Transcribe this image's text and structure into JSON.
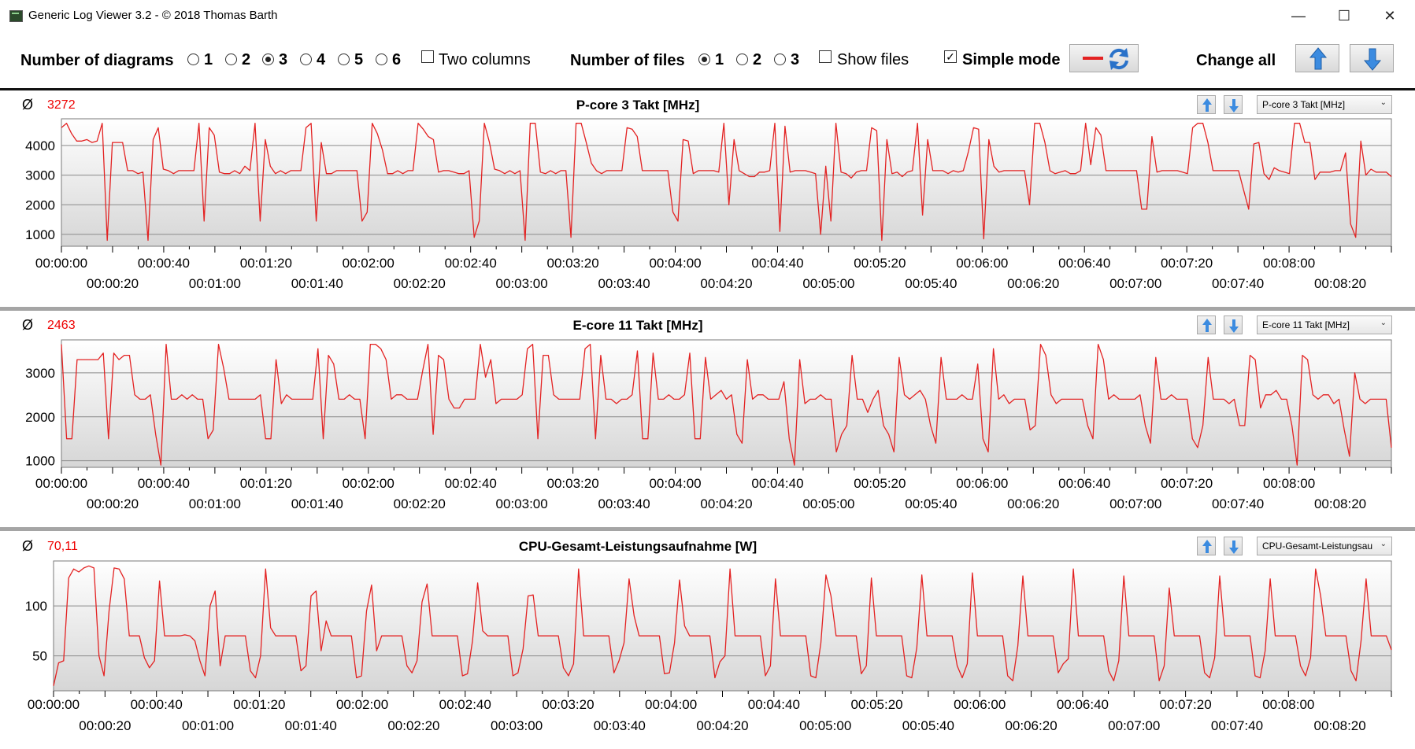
{
  "window": {
    "title": "Generic Log Viewer 3.2 - © 2018 Thomas Barth",
    "minimize_label": "—",
    "maximize_label": "☐",
    "close_label": "✕"
  },
  "toolbar": {
    "diagrams_label": "Number of diagrams",
    "diagram_options": [
      "1",
      "2",
      "3",
      "4",
      "5",
      "6"
    ],
    "diagrams_selected": "3",
    "two_columns_label": "Two columns",
    "two_columns_checked": false,
    "files_label": "Number of files",
    "file_options": [
      "1",
      "2",
      "3"
    ],
    "files_selected": "1",
    "show_files_label": "Show files",
    "show_files_checked": false,
    "simple_mode_label": "Simple mode",
    "simple_mode_checked": true,
    "change_all_label": "Change all",
    "line_color": "#e32222",
    "icons": [
      "red-line-icon",
      "refresh-icon",
      "arrow-up-icon",
      "arrow-down-icon"
    ]
  },
  "panels": [
    {
      "avg_symbol": "Ø",
      "avg": "3272",
      "title": "P-core 3 Takt [MHz]",
      "selector": "P-core 3 Takt [MHz]"
    },
    {
      "avg_symbol": "Ø",
      "avg": "2463",
      "title": "E-core 11 Takt [MHz]",
      "selector": "E-core 11 Takt [MHz]"
    },
    {
      "avg_symbol": "Ø",
      "avg": "70,11",
      "title": "CPU-Gesamt-Leistungsaufnahme [W]",
      "selector": "CPU-Gesamt-Leistungsau"
    }
  ],
  "chart_data": [
    {
      "type": "line",
      "title": "P-core 3 Takt [MHz]",
      "xlabel": "",
      "ylabel": "",
      "x_range_seconds": [
        0,
        520
      ],
      "ylim": [
        600,
        4900
      ],
      "yticks": [
        1000,
        2000,
        3000,
        4000
      ],
      "x_tick_labels_upper": [
        "00:00:00",
        "00:00:40",
        "00:01:20",
        "00:02:00",
        "00:02:40",
        "00:03:20",
        "00:04:00",
        "00:04:40",
        "00:05:20",
        "00:06:00",
        "00:06:40",
        "00:07:20",
        "00:08:00"
      ],
      "x_tick_labels_lower": [
        "00:00:20",
        "00:01:00",
        "00:01:40",
        "00:02:20",
        "00:03:00",
        "00:03:40",
        "00:04:20",
        "00:05:00",
        "00:05:40",
        "00:06:20",
        "00:07:00",
        "00:07:40",
        "00:08:20"
      ],
      "grid": true,
      "color": "#e32222",
      "values": [
        4600,
        4750,
        4400,
        4150,
        4150,
        4200,
        4100,
        4150,
        4750,
        800,
        4100,
        4100,
        4100,
        3150,
        3150,
        3050,
        3100,
        800,
        4200,
        4600,
        3200,
        3150,
        3050,
        3150,
        3150,
        3150,
        3150,
        4750,
        1450,
        4600,
        4350,
        3100,
        3050,
        3050,
        3150,
        3050,
        3300,
        3150,
        4750,
        1450,
        4200,
        3300,
        3050,
        3150,
        3050,
        3150,
        3150,
        3150,
        4600,
        4750,
        1450,
        4100,
        3050,
        3050,
        3150,
        3150,
        3150,
        3150,
        3150,
        1450,
        1750,
        4750,
        4400,
        3850,
        3050,
        3050,
        3150,
        3050,
        3150,
        3150,
        4750,
        4550,
        4300,
        4200,
        3100,
        3150,
        3150,
        3100,
        3050,
        3050,
        3150,
        900,
        1450,
        4750,
        4100,
        3200,
        3150,
        3050,
        3150,
        3050,
        3150,
        800,
        4750,
        4750,
        3100,
        3050,
        3150,
        3050,
        3150,
        3150,
        900,
        4750,
        4750,
        4100,
        3400,
        3150,
        3050,
        3150,
        3150,
        3150,
        3150,
        4600,
        4550,
        4300,
        3150,
        3150,
        3150,
        3150,
        3150,
        3150,
        1750,
        1450,
        4200,
        4150,
        3050,
        3150,
        3150,
        3150,
        3150,
        3100,
        4750,
        2000,
        4200,
        3150,
        3050,
        2950,
        2950,
        3100,
        3100,
        3150,
        4750,
        1100,
        4650,
        3100,
        3150,
        3150,
        3150,
        3100,
        3050,
        1000,
        3300,
        1450,
        4750,
        3100,
        3050,
        2900,
        3100,
        3150,
        3150,
        4600,
        4500,
        800,
        4200,
        3050,
        3100,
        2950,
        3100,
        3150,
        4750,
        1650,
        4200,
        3150,
        3150,
        3150,
        3050,
        3150,
        3100,
        3150,
        3800,
        4600,
        4550,
        850,
        4200,
        3300,
        3100,
        3150,
        3150,
        3150,
        3150,
        3150,
        2000,
        4750,
        4750,
        4100,
        3150,
        3050,
        3100,
        3150,
        3050,
        3050,
        3150,
        4750,
        3350,
        4600,
        4350,
        3150,
        3150,
        3150,
        3150,
        3150,
        3150,
        3150,
        1850,
        1850,
        4300,
        3100,
        3150,
        3150,
        3150,
        3150,
        3100,
        3050,
        4600,
        4750,
        4750,
        4100,
        3150,
        3150,
        3150,
        3150,
        3150,
        3150,
        2500,
        1850,
        4050,
        4100,
        3050,
        2850,
        3250,
        3150,
        3100,
        3050,
        4750,
        4750,
        4100,
        4100,
        2850,
        3100,
        3100,
        3100,
        3150,
        3150,
        3750,
        1350,
        900,
        4150,
        3000,
        3200,
        3100,
        3100,
        3100,
        2950
      ]
    },
    {
      "type": "line",
      "title": "E-core 11 Takt [MHz]",
      "xlabel": "",
      "ylabel": "",
      "x_range_seconds": [
        0,
        520
      ],
      "ylim": [
        850,
        3750
      ],
      "yticks": [
        1000,
        2000,
        3000
      ],
      "x_tick_labels_upper": [
        "00:00:00",
        "00:00:40",
        "00:01:20",
        "00:02:00",
        "00:02:40",
        "00:03:20",
        "00:04:00",
        "00:04:40",
        "00:05:20",
        "00:06:00",
        "00:06:40",
        "00:07:20",
        "00:08:00"
      ],
      "x_tick_labels_lower": [
        "00:00:20",
        "00:01:00",
        "00:01:40",
        "00:02:20",
        "00:03:00",
        "00:03:40",
        "00:04:20",
        "00:05:00",
        "00:05:40",
        "00:06:20",
        "00:07:00",
        "00:07:40",
        "00:08:20"
      ],
      "grid": true,
      "color": "#e32222",
      "values": [
        3650,
        1500,
        1500,
        3300,
        3300,
        3300,
        3300,
        3300,
        3450,
        1500,
        3450,
        3300,
        3400,
        3400,
        2500,
        2400,
        2400,
        2500,
        1600,
        900,
        3650,
        2400,
        2400,
        2500,
        2400,
        2500,
        2400,
        2400,
        1500,
        1700,
        3650,
        3100,
        2400,
        2400,
        2400,
        2400,
        2400,
        2400,
        2500,
        1500,
        1500,
        3300,
        2300,
        2500,
        2400,
        2400,
        2400,
        2400,
        2400,
        3550,
        1500,
        3400,
        3200,
        2400,
        2400,
        2500,
        2400,
        2400,
        1500,
        3650,
        3650,
        3550,
        3300,
        2400,
        2500,
        2500,
        2400,
        2400,
        2400,
        3050,
        3650,
        1600,
        3400,
        3300,
        2400,
        2200,
        2200,
        2400,
        2400,
        2400,
        3650,
        2900,
        3300,
        2300,
        2400,
        2400,
        2400,
        2400,
        2500,
        3550,
        3650,
        1500,
        3400,
        3400,
        2500,
        2400,
        2400,
        2400,
        2400,
        2400,
        3550,
        3650,
        1500,
        3400,
        2400,
        2400,
        2300,
        2400,
        2400,
        2500,
        3500,
        1500,
        1500,
        3450,
        2400,
        2400,
        2500,
        2400,
        2400,
        2500,
        3450,
        1500,
        1500,
        3350,
        2400,
        2500,
        2600,
        2400,
        2500,
        1600,
        1400,
        3300,
        2400,
        2500,
        2500,
        2400,
        2400,
        2400,
        2800,
        1500,
        900,
        3300,
        2300,
        2400,
        2400,
        2500,
        2400,
        2400,
        1200,
        1600,
        1800,
        3400,
        2400,
        2400,
        2100,
        2400,
        2600,
        1800,
        1600,
        1200,
        3350,
        2500,
        2400,
        2500,
        2600,
        2400,
        1800,
        1400,
        3350,
        2400,
        2400,
        2400,
        2500,
        2400,
        2400,
        3200,
        1500,
        1200,
        3550,
        2400,
        2500,
        2300,
        2400,
        2400,
        2400,
        1700,
        1800,
        3650,
        3400,
        2500,
        2300,
        2400,
        2400,
        2400,
        2400,
        2400,
        1800,
        1500,
        3650,
        3300,
        2400,
        2500,
        2400,
        2400,
        2400,
        2400,
        2500,
        1800,
        1400,
        3350,
        2400,
        2400,
        2500,
        2400,
        2400,
        2400,
        1500,
        1300,
        1800,
        3350,
        2400,
        2400,
        2400,
        2300,
        2400,
        1800,
        1800,
        3400,
        3300,
        2200,
        2500,
        2500,
        2600,
        2400,
        2400,
        1800,
        900,
        3400,
        3300,
        2500,
        2400,
        2500,
        2500,
        2300,
        2400,
        1700,
        1100,
        3000,
        2400,
        2300,
        2400,
        2400,
        2400,
        2400,
        1300
      ]
    },
    {
      "type": "line",
      "title": "CPU-Gesamt-Leistungsaufnahme [W]",
      "xlabel": "",
      "ylabel": "",
      "x_range_seconds": [
        0,
        520
      ],
      "ylim": [
        15,
        145
      ],
      "yticks": [
        50,
        100
      ],
      "x_tick_labels_upper": [
        "00:00:00",
        "00:00:40",
        "00:01:20",
        "00:02:00",
        "00:02:40",
        "00:03:20",
        "00:04:00",
        "00:04:40",
        "00:05:20",
        "00:06:00",
        "00:06:40",
        "00:07:20",
        "00:08:00"
      ],
      "x_tick_labels_lower": [
        "00:00:20",
        "00:01:00",
        "00:01:40",
        "00:02:20",
        "00:03:00",
        "00:03:40",
        "00:04:20",
        "00:05:00",
        "00:05:40",
        "00:06:20",
        "00:07:00",
        "00:07:40",
        "00:08:20"
      ],
      "grid": true,
      "color": "#e32222",
      "values": [
        20,
        43,
        45,
        128,
        137,
        134,
        138,
        140,
        138,
        50,
        30,
        95,
        138,
        137,
        127,
        70,
        70,
        70,
        48,
        38,
        45,
        125,
        70,
        70,
        70,
        70,
        71,
        70,
        65,
        45,
        30,
        100,
        115,
        40,
        70,
        70,
        70,
        70,
        70,
        35,
        28,
        50,
        137,
        78,
        70,
        70,
        70,
        70,
        70,
        35,
        40,
        110,
        115,
        55,
        85,
        70,
        70,
        70,
        70,
        70,
        28,
        30,
        95,
        121,
        55,
        70,
        70,
        70,
        70,
        70,
        40,
        33,
        45,
        104,
        122,
        70,
        70,
        70,
        70,
        70,
        70,
        30,
        32,
        65,
        123,
        75,
        70,
        70,
        70,
        70,
        70,
        30,
        33,
        57,
        110,
        111,
        70,
        70,
        70,
        70,
        70,
        38,
        30,
        42,
        137,
        70,
        70,
        70,
        70,
        70,
        70,
        33,
        45,
        63,
        127,
        90,
        70,
        70,
        70,
        70,
        70,
        32,
        33,
        63,
        126,
        80,
        70,
        70,
        70,
        70,
        70,
        28,
        44,
        50,
        137,
        70,
        70,
        70,
        70,
        70,
        70,
        30,
        40,
        127,
        70,
        70,
        70,
        70,
        70,
        70,
        30,
        28,
        63,
        131,
        110,
        70,
        70,
        70,
        70,
        70,
        32,
        40,
        128,
        70,
        70,
        70,
        70,
        70,
        70,
        30,
        28,
        58,
        131,
        70,
        70,
        70,
        70,
        70,
        70,
        40,
        28,
        42,
        133,
        70,
        70,
        70,
        70,
        70,
        70,
        30,
        25,
        60,
        130,
        70,
        70,
        70,
        70,
        70,
        70,
        33,
        42,
        47,
        137,
        70,
        70,
        70,
        70,
        70,
        70,
        35,
        25,
        45,
        130,
        70,
        70,
        70,
        70,
        70,
        70,
        25,
        40,
        118,
        70,
        70,
        70,
        70,
        70,
        70,
        33,
        28,
        48,
        130,
        70,
        70,
        70,
        70,
        70,
        70,
        30,
        28,
        55,
        127,
        70,
        70,
        70,
        70,
        70,
        40,
        30,
        48,
        137,
        110,
        70,
        70,
        70,
        70,
        70,
        35,
        25,
        65,
        127,
        70,
        70,
        70,
        70,
        56
      ]
    }
  ]
}
